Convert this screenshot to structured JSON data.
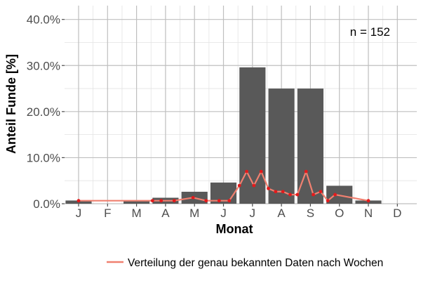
{
  "chart_data": {
    "type": "bar",
    "xlabel": "Monat",
    "ylabel": "Anteil Funde [%]",
    "categories": [
      "J",
      "F",
      "M",
      "A",
      "M",
      "J",
      "J",
      "A",
      "S",
      "O",
      "N",
      "D"
    ],
    "values": [
      0.7,
      0.0,
      0.7,
      1.3,
      2.6,
      4.6,
      29.6,
      25.0,
      25.0,
      3.9,
      0.7,
      0.0
    ],
    "y_ticks": [
      0,
      10,
      20,
      30,
      40
    ],
    "y_tick_labels": [
      "0.0%",
      "10.0%",
      "20.0%",
      "30.0%",
      "40.0%"
    ],
    "ylim": [
      0,
      43
    ],
    "grid": true,
    "annotation": "n = 152",
    "legend": {
      "position": "bottom",
      "label": "Verteilung der genau bekannten Daten nach Wochen",
      "color": "#F08070"
    },
    "line_series": {
      "color": "#F08070",
      "point_color": "#E31A1C",
      "points": [
        {
          "month": 1.0,
          "value": 0.66
        },
        {
          "month": 3.55,
          "value": 0.66
        },
        {
          "month": 3.85,
          "value": 0.66
        },
        {
          "month": 4.3,
          "value": 0.66
        },
        {
          "month": 4.95,
          "value": 1.32
        },
        {
          "month": 5.4,
          "value": 0.66
        },
        {
          "month": 5.85,
          "value": 0.66
        },
        {
          "month": 6.2,
          "value": 0.66
        },
        {
          "month": 6.55,
          "value": 3.95
        },
        {
          "month": 6.8,
          "value": 7.0
        },
        {
          "month": 7.05,
          "value": 3.95
        },
        {
          "month": 7.3,
          "value": 7.0
        },
        {
          "month": 7.55,
          "value": 3.3
        },
        {
          "month": 7.8,
          "value": 2.63
        },
        {
          "month": 8.05,
          "value": 2.63
        },
        {
          "month": 8.3,
          "value": 1.97
        },
        {
          "month": 8.55,
          "value": 1.97
        },
        {
          "month": 8.85,
          "value": 7.0
        },
        {
          "month": 9.1,
          "value": 1.97
        },
        {
          "month": 9.35,
          "value": 2.63
        },
        {
          "month": 9.6,
          "value": 0.66
        },
        {
          "month": 9.85,
          "value": 1.97
        },
        {
          "month": 11.0,
          "value": 0.66
        }
      ]
    }
  }
}
